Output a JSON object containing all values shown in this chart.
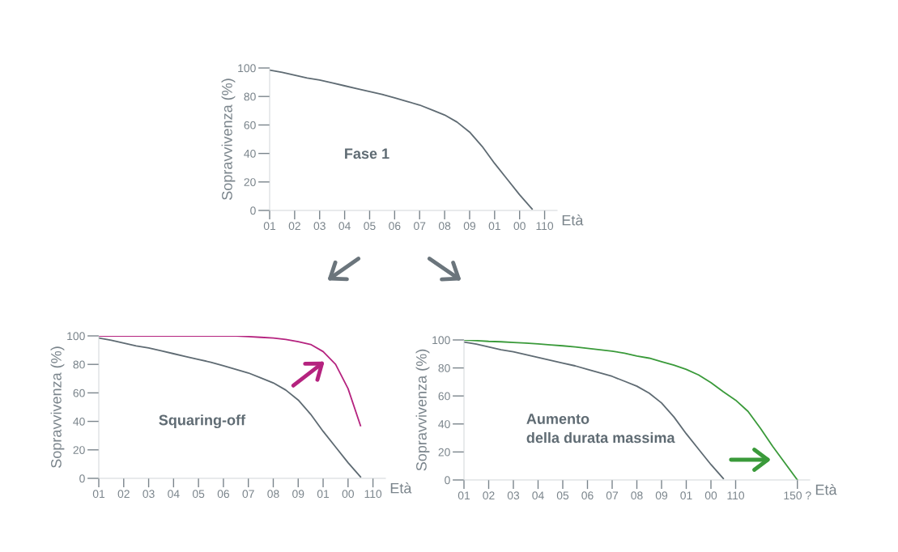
{
  "chart_data": [
    {
      "type": "line",
      "ylabel": "Sopravvivenza (%)",
      "xlabel": "Età",
      "annotations": [
        "Fase 1"
      ],
      "categories": [
        "01",
        null,
        "02",
        null,
        "03",
        null,
        "04",
        null,
        "05",
        null,
        "06",
        null,
        "07",
        null,
        "08",
        null,
        "09",
        null,
        "01",
        null,
        "00",
        null,
        "110"
      ],
      "ylim": [
        0,
        100
      ],
      "yticks": [
        0,
        20,
        40,
        60,
        80,
        100
      ],
      "series": [
        {
          "color": "#5f6b73",
          "values": [
            98.5,
            97,
            95,
            93,
            91.5,
            89.5,
            87.5,
            85.5,
            83.5,
            81.5,
            79,
            76.5,
            74,
            70.5,
            67,
            62,
            55,
            45,
            33,
            22,
            11,
            1,
            null
          ]
        }
      ]
    },
    {
      "type": "line",
      "ylabel": "Sopravvivenza (%)",
      "xlabel": "Età",
      "annotations": [
        "Squaring-off"
      ],
      "categories": [
        "01",
        null,
        "02",
        null,
        "03",
        null,
        "04",
        null,
        "05",
        null,
        "06",
        null,
        "07",
        null,
        "08",
        null,
        "09",
        null,
        "01",
        null,
        "00",
        null,
        "110"
      ],
      "ylim": [
        0,
        100
      ],
      "yticks": [
        0,
        20,
        40,
        60,
        80,
        100
      ],
      "series": [
        {
          "color": "#5f6b73",
          "values": [
            98.5,
            97,
            95,
            93,
            91.5,
            89.5,
            87.5,
            85.5,
            83.5,
            81.5,
            79,
            76.5,
            74,
            70.5,
            67,
            62,
            55,
            45,
            33,
            22,
            11,
            1,
            null
          ]
        },
        {
          "color": "#b5237f",
          "values": [
            100,
            100,
            100,
            100,
            100,
            100,
            100,
            100,
            100,
            100,
            100,
            100,
            99.5,
            99,
            98.5,
            97.5,
            96,
            94,
            89,
            80,
            63,
            37,
            null
          ]
        }
      ]
    },
    {
      "type": "line",
      "ylabel": "Sopravvivenza (%)",
      "xlabel": "Età",
      "annotations": [
        "Aumento\ndella durata massima"
      ],
      "categories": [
        "01",
        null,
        "02",
        null,
        "03",
        null,
        "04",
        null,
        "05",
        null,
        "06",
        null,
        "07",
        null,
        "08",
        null,
        "09",
        null,
        "01",
        null,
        "00",
        null,
        "110",
        null,
        null,
        null,
        null,
        "150 ?"
      ],
      "ylim": [
        0,
        100
      ],
      "yticks": [
        0,
        20,
        40,
        60,
        80,
        100
      ],
      "series": [
        {
          "color": "#5f6b73",
          "values": [
            98.5,
            97,
            95,
            93,
            91.5,
            89.5,
            87.5,
            85.5,
            83.5,
            81.5,
            79,
            76.5,
            74,
            70.5,
            67,
            62,
            55,
            45,
            33,
            22,
            11,
            1,
            null,
            null,
            null,
            null,
            null,
            null
          ]
        },
        {
          "color": "#3a9a3a",
          "values": [
            100,
            99.5,
            99,
            98.7,
            98.2,
            97.8,
            97.2,
            96.5,
            95.8,
            95,
            94,
            93,
            92,
            90.5,
            88.5,
            87,
            84.5,
            82,
            79,
            75,
            69.5,
            63,
            57,
            49,
            37,
            24,
            12,
            0
          ]
        }
      ]
    }
  ]
}
